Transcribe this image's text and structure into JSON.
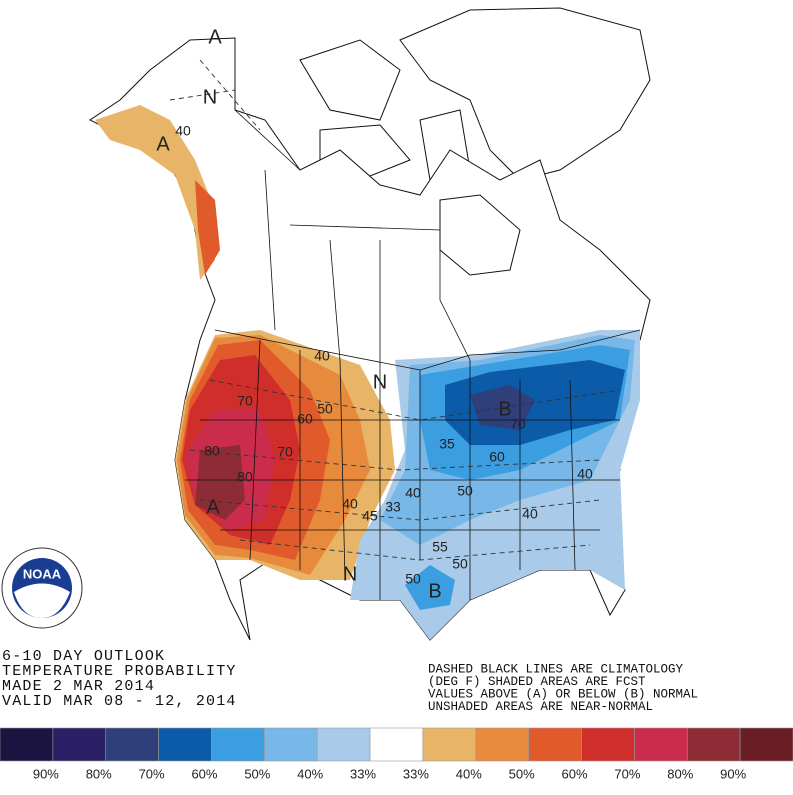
{
  "text_left": [
    "6-10 DAY OUTLOOK",
    "TEMPERATURE PROBABILITY",
    "MADE  2 MAR 2014",
    "VALID  MAR 08 - 12, 2014"
  ],
  "text_right": [
    "DASHED BLACK LINES ARE CLIMATOLOGY",
    "(DEG F) SHADED AREAS ARE FCST",
    "VALUES ABOVE (A) OR BELOW (B) NORMAL",
    "UNSHADED AREAS ARE NEAR-NORMAL"
  ],
  "logo": "NOAA",
  "legend": {
    "colors": [
      "#1b1440",
      "#2b1f66",
      "#2e3f7a",
      "#0b5ba8",
      "#3a9ee0",
      "#78b8e8",
      "#a9cbe9",
      "#ffffff",
      "#e8b468",
      "#e88a3c",
      "#e05a2c",
      "#d02e2a",
      "#cc2c4c",
      "#8e2c36",
      "#6a1e24"
    ],
    "labels": [
      "90%",
      "80%",
      "70%",
      "60%",
      "50%",
      "40%",
      "33%",
      "33%",
      "40%",
      "50%",
      "60%",
      "70%",
      "80%",
      "90%"
    ]
  },
  "map_labels": [
    "A",
    "N",
    "A",
    "40",
    "N",
    "40",
    "50",
    "60",
    "70",
    "70",
    "80",
    "80",
    "A",
    "40",
    "45",
    "33",
    "N",
    "B",
    "70",
    "35",
    "60",
    "50",
    "40",
    "40",
    "40",
    "55",
    "50",
    "50",
    "B"
  ]
}
